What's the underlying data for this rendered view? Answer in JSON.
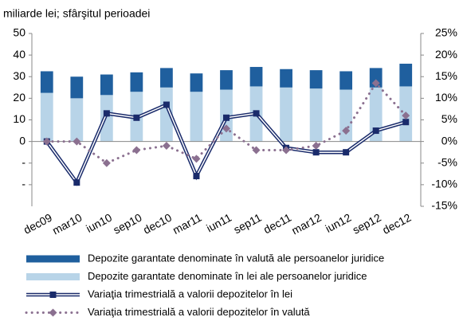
{
  "chart_data": {
    "type": "bar_line",
    "title": "miliarde lei; sfârşitul perioadei",
    "categories": [
      "dec09",
      "mar10",
      "iun10",
      "sep10",
      "dec10",
      "mar11",
      "iun11",
      "sep11",
      "dec11",
      "mar12",
      "iun12",
      "sep12",
      "dec12"
    ],
    "series": [
      {
        "name": "Depozite garantate denominate în valută ale persoanelor juridice",
        "color": "#1f5f9e",
        "type": "bar",
        "values": [
          10,
          10,
          9.5,
          9,
          9,
          8.5,
          9,
          9,
          8.5,
          8.5,
          8.5,
          9,
          10.5
        ]
      },
      {
        "name": "Depozite garantate denominate în lei ale persoanelor juridice",
        "color": "#b8d4e8",
        "type": "bar",
        "values": [
          22.5,
          20,
          21.5,
          23,
          25,
          23,
          24,
          25.5,
          25,
          24.5,
          24,
          25,
          25.5
        ]
      },
      {
        "name": "Variaţia trimestrială a valorii depozitelor în lei",
        "color": "#1a2b6b",
        "type": "line",
        "axis": "y2",
        "values": [
          0,
          -9.5,
          6.5,
          5.5,
          8.5,
          -8,
          5.5,
          6.5,
          -1.5,
          -2.5,
          -2.5,
          2.5,
          4.5
        ]
      },
      {
        "name": "Variaţia trimestrială a valorii depozitelor în valută",
        "color": "#8b7090",
        "type": "dotted",
        "axis": "y2",
        "values": [
          0,
          0,
          -5,
          -2,
          -1,
          -4,
          3,
          -2,
          -2,
          -1,
          2.5,
          13.5,
          6
        ]
      }
    ],
    "ylim": [
      -30,
      50
    ],
    "yticks": [
      {
        "value": -20,
        "label": "-"
      },
      {
        "value": -10,
        "label": "-"
      },
      0,
      10,
      20,
      30,
      40,
      50
    ],
    "y2lim": [
      -15,
      25
    ],
    "y2ticks": [
      {
        "value": -15,
        "label": "-15%"
      },
      {
        "value": -10,
        "label": "-10%"
      },
      {
        "value": -5,
        "label": "-5%"
      },
      {
        "value": 0,
        "label": "0%"
      },
      {
        "value": 5,
        "label": "5%"
      },
      {
        "value": 10,
        "label": "10%"
      },
      {
        "value": 15,
        "label": "15%"
      },
      {
        "value": 20,
        "label": "20%"
      },
      {
        "value": 25,
        "label": "25%"
      }
    ]
  }
}
